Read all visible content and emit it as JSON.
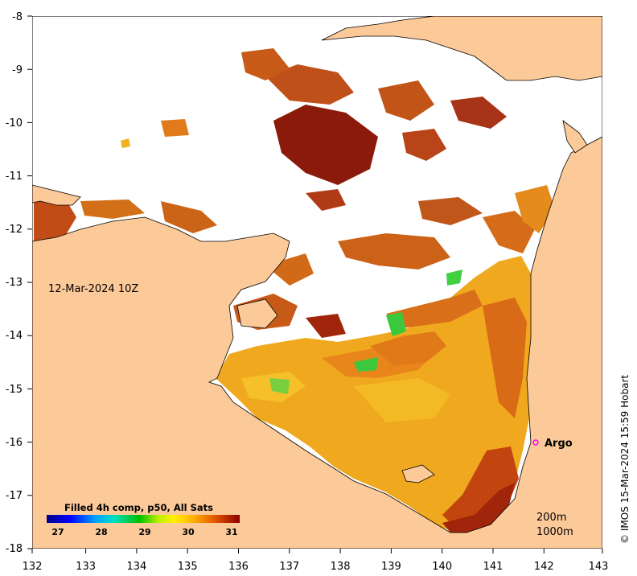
{
  "map": {
    "title_date": "12-Mar-2024 10Z",
    "credit": "© IMOS 15-Mar-2024 15:59 Hobart",
    "argo_label": "Argo",
    "depth_labels": [
      "200m",
      "1000m"
    ],
    "x_ticks": [
      "132",
      "133",
      "134",
      "135",
      "136",
      "137",
      "138",
      "139",
      "140",
      "141",
      "142",
      "143"
    ],
    "y_ticks": [
      "-8",
      "-9",
      "-10",
      "-11",
      "-12",
      "-13",
      "-14",
      "-15",
      "-16",
      "-17",
      "-18"
    ],
    "colorbar": {
      "title": "Filled 4h comp, p50, All Sats",
      "ticks": [
        "27",
        "28",
        "29",
        "30",
        "31"
      ]
    },
    "colors": {
      "land": "#FCC999",
      "no_data": "#FFFFFF",
      "argo_marker": "#FF00FF",
      "sst_warm_dark": "#8B1A0A",
      "sst_orange": "#D2641A",
      "sst_yellow": "#F0B020",
      "sst_green": "#3CC83C"
    }
  }
}
